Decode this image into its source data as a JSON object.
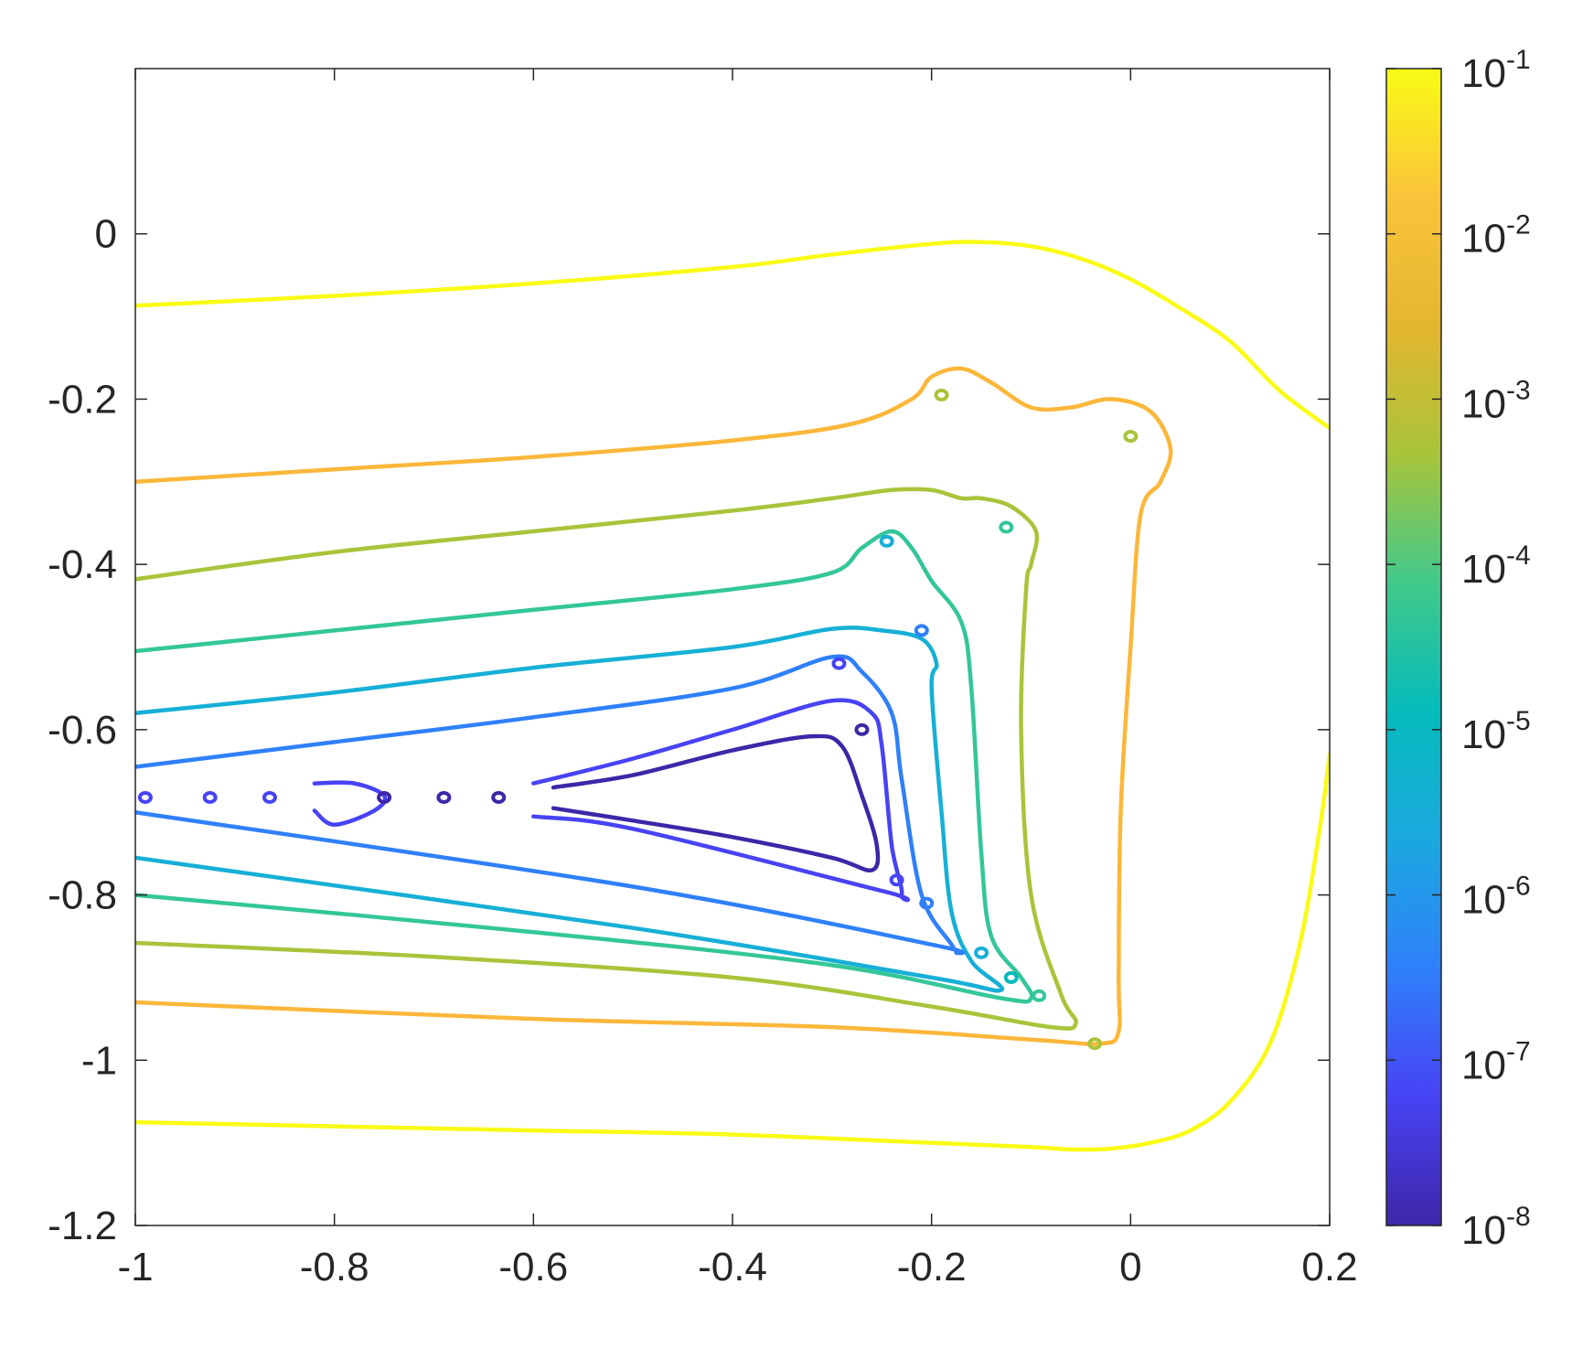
{
  "chart_data": {
    "type": "contour",
    "title": "",
    "xlabel": "",
    "ylabel": "",
    "xlim": [
      -1,
      0.2
    ],
    "ylim": [
      -1.2,
      0.2
    ],
    "xticks": [
      {
        "value": -1,
        "label": "-1"
      },
      {
        "value": -0.8,
        "label": "-0.8"
      },
      {
        "value": -0.6,
        "label": "-0.6"
      },
      {
        "value": -0.4,
        "label": "-0.4"
      },
      {
        "value": -0.2,
        "label": "-0.2"
      },
      {
        "value": 0,
        "label": "0"
      },
      {
        "value": 0.2,
        "label": "0.2"
      }
    ],
    "yticks": [
      {
        "value": 0,
        "label": "0"
      },
      {
        "value": -0.2,
        "label": "-0.2"
      },
      {
        "value": -0.4,
        "label": "-0.4"
      },
      {
        "value": -0.6,
        "label": "-0.6"
      },
      {
        "value": -0.8,
        "label": "-0.8"
      },
      {
        "value": -1,
        "label": "-1"
      },
      {
        "value": -1.2,
        "label": "-1.2"
      }
    ],
    "grid": false,
    "colorbar": {
      "scale": "log",
      "position": "right",
      "range": [
        1e-08,
        0.1
      ],
      "colormap": [
        "#3e26a8",
        "#4743f4",
        "#2f80fa",
        "#1ba8df",
        "#05bbbb",
        "#41c98b",
        "#a8c43a",
        "#e4b630",
        "#fac43a",
        "#f9fb15"
      ],
      "ticks": [
        {
          "exponent": -1,
          "base": "10",
          "exp": "-1",
          "color": "#f9fb15"
        },
        {
          "exponent": -2,
          "base": "10",
          "exp": "-2",
          "color": "#fbb73a"
        },
        {
          "exponent": -3,
          "base": "10",
          "exp": "-3",
          "color": "#a8c43a"
        },
        {
          "exponent": -4,
          "base": "10",
          "exp": "-4",
          "color": "#33c699"
        },
        {
          "exponent": -5,
          "base": "10",
          "exp": "-5",
          "color": "#16afd6"
        },
        {
          "exponent": -6,
          "base": "10",
          "exp": "-6",
          "color": "#2f80fa"
        },
        {
          "exponent": -7,
          "base": "10",
          "exp": "-7",
          "color": "#4743f4"
        },
        {
          "exponent": -8,
          "base": "10",
          "exp": "-8",
          "color": "#3e26a8"
        }
      ]
    },
    "contours": [
      {
        "level_exp": -1,
        "color": "#f9fb15",
        "paths": [
          [
            [
              -1,
              -0.087
            ],
            [
              -0.8,
              -0.075
            ],
            [
              -0.6,
              -0.06
            ],
            [
              -0.4,
              -0.04
            ],
            [
              -0.3,
              -0.025
            ],
            [
              -0.2,
              -0.012
            ],
            [
              -0.15,
              -0.01
            ],
            [
              -0.1,
              -0.015
            ],
            [
              -0.05,
              -0.03
            ],
            [
              0,
              -0.055
            ],
            [
              0.05,
              -0.09
            ],
            [
              0.1,
              -0.13
            ],
            [
              0.15,
              -0.19
            ],
            [
              0.2,
              -0.235
            ]
          ],
          [
            [
              -1,
              -1.075
            ],
            [
              -0.8,
              -1.08
            ],
            [
              -0.6,
              -1.085
            ],
            [
              -0.4,
              -1.09
            ],
            [
              -0.2,
              -1.1
            ],
            [
              -0.1,
              -1.105
            ],
            [
              -0.06,
              -1.108
            ],
            [
              -0.02,
              -1.107
            ],
            [
              0.02,
              -1.1
            ],
            [
              0.06,
              -1.085
            ],
            [
              0.1,
              -1.05
            ],
            [
              0.14,
              -0.98
            ],
            [
              0.17,
              -0.86
            ],
            [
              0.19,
              -0.72
            ],
            [
              0.2,
              -0.63
            ]
          ]
        ]
      },
      {
        "level_exp": -2,
        "color": "#fbb73a",
        "paths": [
          [
            [
              -1,
              -0.3
            ],
            [
              -0.8,
              -0.285
            ],
            [
              -0.6,
              -0.27
            ],
            [
              -0.4,
              -0.25
            ],
            [
              -0.28,
              -0.23
            ],
            [
              -0.22,
              -0.2
            ],
            [
              -0.2,
              -0.173
            ],
            [
              -0.17,
              -0.163
            ],
            [
              -0.14,
              -0.18
            ],
            [
              -0.1,
              -0.21
            ],
            [
              -0.06,
              -0.21
            ],
            [
              -0.02,
              -0.2
            ],
            [
              0.02,
              -0.215
            ],
            [
              0.04,
              -0.26
            ],
            [
              0.03,
              -0.3
            ],
            [
              0.01,
              -0.34
            ],
            [
              0,
              -0.5
            ],
            [
              -0.01,
              -0.7
            ],
            [
              -0.012,
              -0.9
            ],
            [
              -0.012,
              -0.965
            ],
            [
              -0.03,
              -0.98
            ],
            [
              -0.1,
              -0.975
            ],
            [
              -0.3,
              -0.96
            ],
            [
              -0.6,
              -0.95
            ],
            [
              -1,
              -0.93
            ]
          ]
        ]
      },
      {
        "level_exp": -3,
        "color": "#a8c43a",
        "paths": [
          [
            [
              -1,
              -0.418
            ],
            [
              -0.8,
              -0.385
            ],
            [
              -0.6,
              -0.36
            ],
            [
              -0.4,
              -0.335
            ],
            [
              -0.3,
              -0.32
            ],
            [
              -0.24,
              -0.31
            ],
            [
              -0.2,
              -0.31
            ],
            [
              -0.17,
              -0.32
            ],
            [
              -0.15,
              -0.32
            ],
            [
              -0.12,
              -0.33
            ],
            [
              -0.095,
              -0.36
            ],
            [
              -0.1,
              -0.4
            ],
            [
              -0.105,
              -0.43
            ],
            [
              -0.11,
              -0.6
            ],
            [
              -0.1,
              -0.8
            ],
            [
              -0.07,
              -0.92
            ],
            [
              -0.055,
              -0.955
            ],
            [
              -0.08,
              -0.96
            ],
            [
              -0.2,
              -0.935
            ],
            [
              -0.4,
              -0.9
            ],
            [
              -0.7,
              -0.875
            ],
            [
              -1,
              -0.858
            ]
          ]
        ]
      },
      {
        "level_exp": -4,
        "color": "#33c699",
        "paths": [
          [
            [
              -1,
              -0.505
            ],
            [
              -0.8,
              -0.48
            ],
            [
              -0.6,
              -0.455
            ],
            [
              -0.4,
              -0.43
            ],
            [
              -0.3,
              -0.41
            ],
            [
              -0.27,
              -0.38
            ],
            [
              -0.24,
              -0.36
            ],
            [
              -0.22,
              -0.38
            ],
            [
              -0.2,
              -0.42
            ],
            [
              -0.17,
              -0.47
            ],
            [
              -0.16,
              -0.55
            ],
            [
              -0.15,
              -0.75
            ],
            [
              -0.14,
              -0.85
            ],
            [
              -0.11,
              -0.9
            ],
            [
              -0.1,
              -0.925
            ],
            [
              -0.13,
              -0.925
            ],
            [
              -0.3,
              -0.885
            ],
            [
              -0.6,
              -0.845
            ],
            [
              -1,
              -0.8
            ]
          ]
        ]
      },
      {
        "level_exp": -5,
        "color": "#16afd6",
        "paths": [
          [
            [
              -1,
              -0.58
            ],
            [
              -0.8,
              -0.555
            ],
            [
              -0.6,
              -0.525
            ],
            [
              -0.4,
              -0.5
            ],
            [
              -0.3,
              -0.478
            ],
            [
              -0.25,
              -0.48
            ],
            [
              -0.21,
              -0.49
            ],
            [
              -0.195,
              -0.52
            ],
            [
              -0.2,
              -0.55
            ],
            [
              -0.19,
              -0.7
            ],
            [
              -0.18,
              -0.82
            ],
            [
              -0.16,
              -0.88
            ],
            [
              -0.13,
              -0.915
            ],
            [
              -0.2,
              -0.9
            ],
            [
              -0.5,
              -0.84
            ],
            [
              -1,
              -0.755
            ]
          ]
        ]
      },
      {
        "level_exp": -6,
        "color": "#2f80fa",
        "paths": [
          [
            [
              -1,
              -0.645
            ],
            [
              -0.8,
              -0.615
            ],
            [
              -0.6,
              -0.585
            ],
            [
              -0.4,
              -0.55
            ],
            [
              -0.3,
              -0.512
            ],
            [
              -0.27,
              -0.53
            ],
            [
              -0.24,
              -0.58
            ],
            [
              -0.23,
              -0.66
            ],
            [
              -0.21,
              -0.8
            ],
            [
              -0.18,
              -0.86
            ],
            [
              -0.175,
              -0.87
            ],
            [
              -0.2,
              -0.86
            ],
            [
              -0.5,
              -0.79
            ],
            [
              -1,
              -0.7
            ]
          ]
        ]
      },
      {
        "level_exp": -7,
        "color": "#4743f4",
        "paths": [
          [
            [
              -0.6,
              -0.665
            ],
            [
              -0.5,
              -0.635
            ],
            [
              -0.4,
              -0.6
            ],
            [
              -0.3,
              -0.565
            ],
            [
              -0.26,
              -0.58
            ],
            [
              -0.25,
              -0.62
            ],
            [
              -0.24,
              -0.74
            ],
            [
              -0.23,
              -0.8
            ],
            [
              -0.25,
              -0.795
            ],
            [
              -0.5,
              -0.72
            ],
            [
              -0.6,
              -0.705
            ]
          ],
          [
            [
              -0.82,
              -0.665
            ],
            [
              -0.78,
              -0.665
            ],
            [
              -0.75,
              -0.68
            ],
            [
              -0.76,
              -0.698
            ],
            [
              -0.8,
              -0.715
            ],
            [
              -0.82,
              -0.698
            ]
          ]
        ]
      },
      {
        "level_exp": -8,
        "color": "#3e26a8",
        "paths": [
          [
            [
              -0.58,
              -0.67
            ],
            [
              -0.5,
              -0.655
            ],
            [
              -0.4,
              -0.625
            ],
            [
              -0.32,
              -0.608
            ],
            [
              -0.29,
              -0.62
            ],
            [
              -0.27,
              -0.68
            ],
            [
              -0.255,
              -0.74
            ],
            [
              -0.26,
              -0.77
            ],
            [
              -0.3,
              -0.755
            ],
            [
              -0.4,
              -0.73
            ],
            [
              -0.5,
              -0.71
            ],
            [
              -0.58,
              -0.695
            ]
          ]
        ]
      }
    ],
    "islands": [
      {
        "x": -0.19,
        "y": -0.195,
        "color": "#a8c43a"
      },
      {
        "x": 0.0,
        "y": -0.245,
        "color": "#a8c43a"
      },
      {
        "x": -0.125,
        "y": -0.355,
        "color": "#33c699"
      },
      {
        "x": -0.245,
        "y": -0.372,
        "color": "#16afd6"
      },
      {
        "x": -0.21,
        "y": -0.48,
        "color": "#2f80fa"
      },
      {
        "x": -0.293,
        "y": -0.52,
        "color": "#4743f4"
      },
      {
        "x": -0.27,
        "y": -0.6,
        "color": "#3e26a8"
      },
      {
        "x": -0.99,
        "y": -0.682,
        "color": "#4743f4"
      },
      {
        "x": -0.925,
        "y": -0.682,
        "color": "#4743f4"
      },
      {
        "x": -0.865,
        "y": -0.682,
        "color": "#4743f4"
      },
      {
        "x": -0.75,
        "y": -0.682,
        "color": "#3e26a8"
      },
      {
        "x": -0.69,
        "y": -0.682,
        "color": "#3e26a8"
      },
      {
        "x": -0.635,
        "y": -0.682,
        "color": "#3e26a8"
      },
      {
        "x": -0.235,
        "y": -0.782,
        "color": "#4743f4"
      },
      {
        "x": -0.205,
        "y": -0.81,
        "color": "#2f80fa"
      },
      {
        "x": -0.15,
        "y": -0.87,
        "color": "#16afd6"
      },
      {
        "x": -0.12,
        "y": -0.9,
        "color": "#05bbbb"
      },
      {
        "x": -0.092,
        "y": -0.922,
        "color": "#33c699"
      },
      {
        "x": -0.036,
        "y": -0.98,
        "color": "#a8c43a"
      }
    ]
  }
}
